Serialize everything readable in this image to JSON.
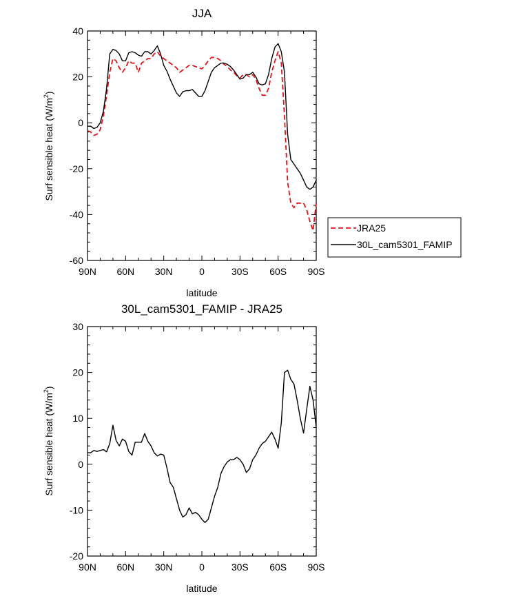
{
  "chart_data": [
    {
      "type": "line",
      "title": "JJA",
      "xlabel": "latitude",
      "ylabel_main": "Surf sensible heat (W/m",
      "ylabel_sup": "2",
      "ylabel_close": ")",
      "xlim": [
        90,
        -90
      ],
      "ylim": [
        -60,
        40
      ],
      "yticks": [
        {
          "v": 40,
          "label": "40"
        },
        {
          "v": 20,
          "label": "20"
        },
        {
          "v": 0,
          "label": "0"
        },
        {
          "v": -20,
          "label": "-20"
        },
        {
          "v": -40,
          "label": "-40"
        },
        {
          "v": -60,
          "label": "-60"
        }
      ],
      "xticks": [
        {
          "v": 90,
          "label": "90N"
        },
        {
          "v": 60,
          "label": "60N"
        },
        {
          "v": 30,
          "label": "30N"
        },
        {
          "v": 0,
          "label": "0"
        },
        {
          "v": -30,
          "label": "30S"
        },
        {
          "v": -60,
          "label": "60S"
        },
        {
          "v": -90,
          "label": "90S"
        }
      ],
      "legend_position": "right",
      "series": [
        {
          "name": "JRA25",
          "color": "#e0141b",
          "dash": true,
          "points": [
            [
              90,
              -3.5
            ],
            [
              87.5,
              -4
            ],
            [
              85,
              -5.5
            ],
            [
              82.5,
              -5
            ],
            [
              80,
              -3
            ],
            [
              77.5,
              3
            ],
            [
              75,
              12
            ],
            [
              72.5,
              22
            ],
            [
              70,
              28
            ],
            [
              67.5,
              27
            ],
            [
              65,
              24
            ],
            [
              62.5,
              22
            ],
            [
              60,
              24
            ],
            [
              57.5,
              27
            ],
            [
              55,
              26
            ],
            [
              52.5,
              26
            ],
            [
              50,
              22
            ],
            [
              47.5,
              26
            ],
            [
              45,
              27
            ],
            [
              42.5,
              28
            ],
            [
              40,
              28
            ],
            [
              37.5,
              30
            ],
            [
              35,
              31
            ],
            [
              32.5,
              29
            ],
            [
              30,
              28
            ],
            [
              27.5,
              27
            ],
            [
              25,
              26
            ],
            [
              22.5,
              25
            ],
            [
              20,
              24
            ],
            [
              17.5,
              22
            ],
            [
              15,
              23
            ],
            [
              12.5,
              24
            ],
            [
              10,
              25
            ],
            [
              7.5,
              25
            ],
            [
              5,
              24.5
            ],
            [
              2.5,
              24
            ],
            [
              0,
              23.5
            ],
            [
              -2.5,
              25
            ],
            [
              -5,
              27
            ],
            [
              -7.5,
              28.5
            ],
            [
              -10,
              28.5
            ],
            [
              -12.5,
              28
            ],
            [
              -15,
              27
            ],
            [
              -17.5,
              25.5
            ],
            [
              -20,
              24.5
            ],
            [
              -22.5,
              23
            ],
            [
              -25,
              22
            ],
            [
              -27.5,
              20.5
            ],
            [
              -30,
              19.5
            ],
            [
              -32.5,
              21
            ],
            [
              -35,
              21
            ],
            [
              -37.5,
              20
            ],
            [
              -40,
              21
            ],
            [
              -42.5,
              19
            ],
            [
              -45,
              15
            ],
            [
              -47.5,
              12
            ],
            [
              -50,
              12
            ],
            [
              -52.5,
              15
            ],
            [
              -55,
              22
            ],
            [
              -57.5,
              27
            ],
            [
              -60,
              31
            ],
            [
              -62.5,
              26
            ],
            [
              -65,
              3
            ],
            [
              -67.5,
              -26
            ],
            [
              -70,
              -35
            ],
            [
              -72.5,
              -37
            ],
            [
              -75,
              -35
            ],
            [
              -77.5,
              -35
            ],
            [
              -80,
              -35
            ],
            [
              -82.5,
              -38
            ],
            [
              -85,
              -43
            ],
            [
              -87.5,
              -47
            ],
            [
              -90,
              -35
            ]
          ]
        },
        {
          "name": "30L_cam5301_FAMIP",
          "color": "#000000",
          "dash": false,
          "points": [
            [
              90,
              -1.5
            ],
            [
              87.5,
              -1.5
            ],
            [
              85,
              -2.5
            ],
            [
              82.5,
              -2
            ],
            [
              80,
              0
            ],
            [
              77.5,
              5
            ],
            [
              75,
              15
            ],
            [
              72.5,
              30
            ],
            [
              70,
              32
            ],
            [
              67.5,
              31.5
            ],
            [
              65,
              30
            ],
            [
              62.5,
              27
            ],
            [
              60,
              27
            ],
            [
              57.5,
              30.5
            ],
            [
              55,
              31
            ],
            [
              52.5,
              30.5
            ],
            [
              50,
              29.5
            ],
            [
              47.5,
              29
            ],
            [
              45,
              31
            ],
            [
              42.5,
              31
            ],
            [
              40,
              30
            ],
            [
              37.5,
              31.5
            ],
            [
              35,
              33.5
            ],
            [
              32.5,
              30
            ],
            [
              30,
              25
            ],
            [
              27.5,
              22.5
            ],
            [
              25,
              19
            ],
            [
              22.5,
              16
            ],
            [
              20,
              13
            ],
            [
              17.5,
              11.5
            ],
            [
              15,
              13.5
            ],
            [
              12.5,
              14
            ],
            [
              10,
              14
            ],
            [
              7.5,
              14.5
            ],
            [
              5,
              13
            ],
            [
              2.5,
              11.5
            ],
            [
              0,
              11.5
            ],
            [
              -2.5,
              14
            ],
            [
              -5,
              18
            ],
            [
              -7.5,
              22
            ],
            [
              -10,
              24
            ],
            [
              -12.5,
              25
            ],
            [
              -15,
              26
            ],
            [
              -17.5,
              26
            ],
            [
              -20,
              25.5
            ],
            [
              -22.5,
              24.5
            ],
            [
              -25,
              23
            ],
            [
              -27.5,
              21
            ],
            [
              -30,
              19
            ],
            [
              -32.5,
              19.5
            ],
            [
              -35,
              21
            ],
            [
              -37.5,
              21
            ],
            [
              -40,
              22
            ],
            [
              -42.5,
              20
            ],
            [
              -45,
              17
            ],
            [
              -47.5,
              16.5
            ],
            [
              -50,
              17
            ],
            [
              -52.5,
              21
            ],
            [
              -55,
              28
            ],
            [
              -57.5,
              33
            ],
            [
              -60,
              34.5
            ],
            [
              -62.5,
              31
            ],
            [
              -65,
              22
            ],
            [
              -67.5,
              -5
            ],
            [
              -70,
              -16
            ],
            [
              -72.5,
              -18
            ],
            [
              -75,
              -20
            ],
            [
              -77.5,
              -22
            ],
            [
              -80,
              -25
            ],
            [
              -82.5,
              -28
            ],
            [
              -85,
              -29
            ],
            [
              -87.5,
              -28
            ],
            [
              -90,
              -25
            ]
          ]
        }
      ]
    },
    {
      "type": "line",
      "title": "30L_cam5301_FAMIP - JRA25",
      "xlabel": "latitude",
      "ylabel_main": "Surf sensible heat (W/m",
      "ylabel_sup": "2",
      "ylabel_close": ")",
      "xlim": [
        90,
        -90
      ],
      "ylim": [
        -20,
        30
      ],
      "yticks": [
        {
          "v": 30,
          "label": "30"
        },
        {
          "v": 20,
          "label": "20"
        },
        {
          "v": 10,
          "label": "10"
        },
        {
          "v": 0,
          "label": "0"
        },
        {
          "v": -10,
          "label": "-10"
        },
        {
          "v": -20,
          "label": "-20"
        }
      ],
      "xticks": [
        {
          "v": 90,
          "label": "90N"
        },
        {
          "v": 60,
          "label": "60N"
        },
        {
          "v": 30,
          "label": "30N"
        },
        {
          "v": 0,
          "label": "0"
        },
        {
          "v": -30,
          "label": "30S"
        },
        {
          "v": -60,
          "label": "60S"
        },
        {
          "v": -90,
          "label": "90S"
        }
      ],
      "series": [
        {
          "color": "#000000",
          "dash": false,
          "points": [
            [
              90,
              2.5
            ],
            [
              87.5,
              2.5
            ],
            [
              85,
              3
            ],
            [
              82.5,
              2.8
            ],
            [
              80,
              3
            ],
            [
              77.5,
              3.2
            ],
            [
              75,
              2.7
            ],
            [
              72.5,
              4.5
            ],
            [
              70,
              8.5
            ],
            [
              67.5,
              5.2
            ],
            [
              65,
              4
            ],
            [
              62.5,
              5.5
            ],
            [
              60,
              5
            ],
            [
              57.5,
              2.8
            ],
            [
              55,
              2
            ],
            [
              52.5,
              4.8
            ],
            [
              50,
              4.8
            ],
            [
              47.5,
              4.8
            ],
            [
              45,
              6.7
            ],
            [
              42.5,
              5
            ],
            [
              40,
              4
            ],
            [
              37.5,
              2.5
            ],
            [
              35,
              1.8
            ],
            [
              32.5,
              2.2
            ],
            [
              30,
              2
            ],
            [
              27.5,
              -0.8
            ],
            [
              25,
              -4
            ],
            [
              22.5,
              -5
            ],
            [
              20,
              -7.5
            ],
            [
              17.5,
              -10
            ],
            [
              15,
              -11.5
            ],
            [
              12.5,
              -11
            ],
            [
              10,
              -9.5
            ],
            [
              7.5,
              -10.8
            ],
            [
              5,
              -10.5
            ],
            [
              2.5,
              -11
            ],
            [
              0,
              -12
            ],
            [
              -2.5,
              -12.7
            ],
            [
              -5,
              -12
            ],
            [
              -7.5,
              -9.5
            ],
            [
              -10,
              -7
            ],
            [
              -12.5,
              -5
            ],
            [
              -15,
              -2
            ],
            [
              -17.5,
              -0.5
            ],
            [
              -20,
              0.5
            ],
            [
              -22.5,
              1
            ],
            [
              -25,
              1
            ],
            [
              -27.5,
              1.5
            ],
            [
              -30,
              1
            ],
            [
              -32.5,
              0
            ],
            [
              -35,
              -1.8
            ],
            [
              -37.5,
              -1
            ],
            [
              -40,
              1
            ],
            [
              -42.5,
              2
            ],
            [
              -45,
              3.5
            ],
            [
              -47.5,
              4.5
            ],
            [
              -50,
              5
            ],
            [
              -52.5,
              6
            ],
            [
              -55,
              7
            ],
            [
              -57.5,
              5.5
            ],
            [
              -60,
              3.5
            ],
            [
              -62.5,
              9
            ],
            [
              -65,
              20
            ],
            [
              -67.5,
              20.5
            ],
            [
              -70,
              18.5
            ],
            [
              -72.5,
              17.5
            ],
            [
              -75,
              14
            ],
            [
              -77.5,
              10
            ],
            [
              -80,
              6.8
            ],
            [
              -82.5,
              12
            ],
            [
              -85,
              17
            ],
            [
              -87.5,
              14
            ],
            [
              -90,
              8
            ]
          ]
        }
      ]
    }
  ]
}
